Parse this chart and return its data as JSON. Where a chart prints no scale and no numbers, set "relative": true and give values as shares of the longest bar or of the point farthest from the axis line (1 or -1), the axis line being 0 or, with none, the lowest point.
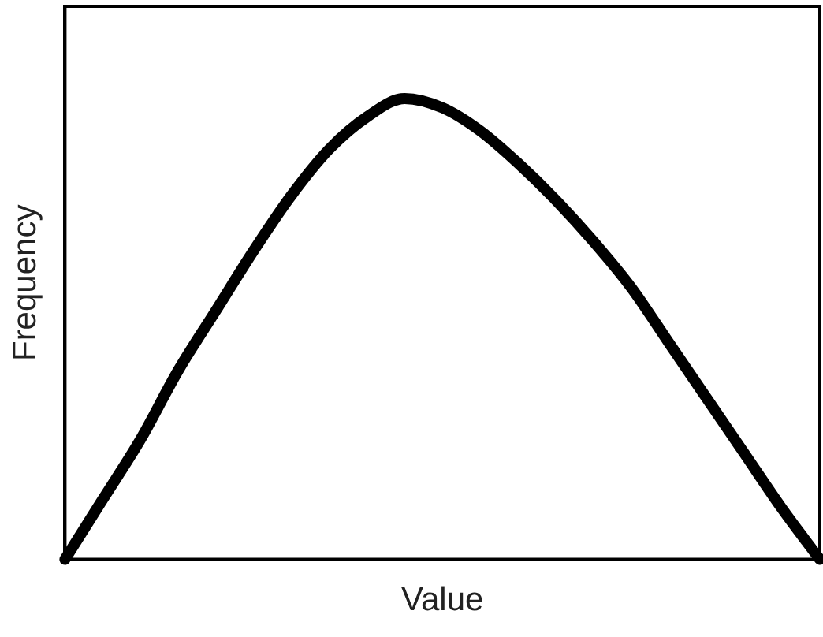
{
  "chart_data": {
    "type": "line",
    "xlabel": "Value",
    "ylabel": "Frequency",
    "relative": true,
    "color": "#000000",
    "line_style": "solid",
    "categories": [
      null,
      null,
      null,
      null,
      null,
      null,
      null,
      null,
      null,
      null,
      null,
      null,
      null,
      null,
      null,
      null,
      null,
      null,
      null,
      null,
      null
    ],
    "values": [
      0,
      0.13,
      0.26,
      0.41,
      0.54,
      0.67,
      0.79,
      0.89,
      0.96,
      1,
      0.98,
      0.93,
      0.86,
      0.78,
      0.69,
      0.59,
      0.47,
      0.35,
      0.23,
      0.11,
      0
    ]
  }
}
